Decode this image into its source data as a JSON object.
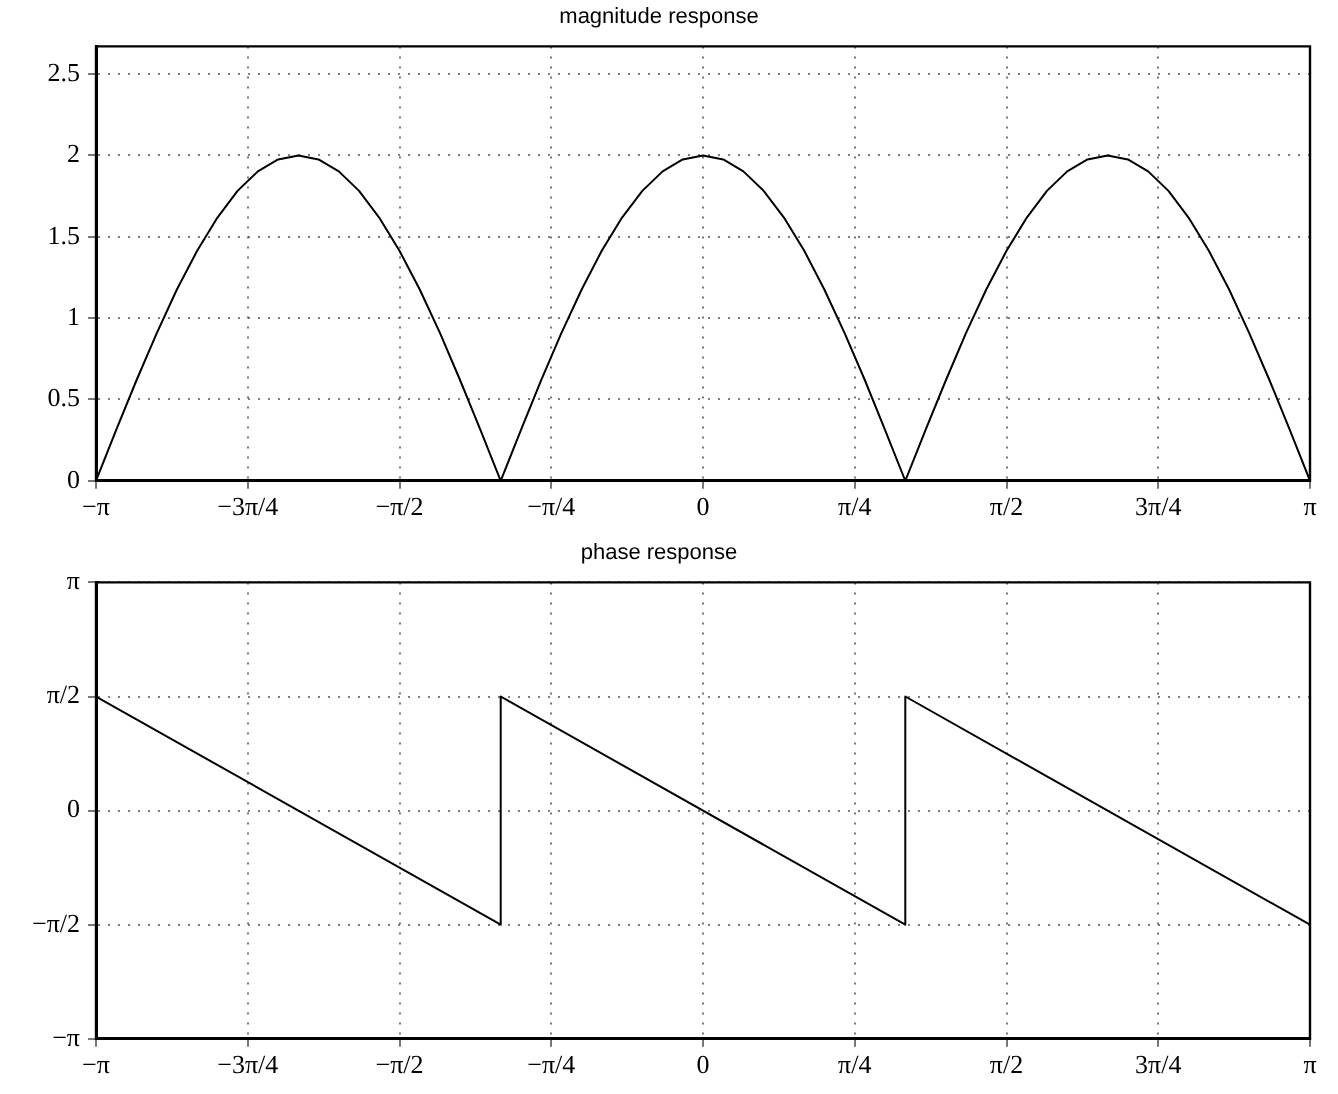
{
  "chart_data": [
    {
      "type": "line",
      "title": "magnitude response",
      "x": [
        -3.1416,
        -3.037,
        -2.932,
        -2.827,
        -2.723,
        -2.618,
        -2.513,
        -2.409,
        -2.304,
        -2.199,
        -2.094,
        -1.99,
        -1.885,
        -1.78,
        -1.676,
        -1.571,
        -1.466,
        -1.361,
        -1.257,
        -1.152,
        -1.047,
        -0.942,
        -0.838,
        -0.733,
        -0.628,
        -0.524,
        -0.419,
        -0.314,
        -0.209,
        -0.105,
        0,
        0.105,
        0.209,
        0.314,
        0.419,
        0.524,
        0.628,
        0.733,
        0.838,
        0.942,
        1.047,
        1.152,
        1.257,
        1.361,
        1.466,
        1.571,
        1.676,
        1.78,
        1.885,
        1.99,
        2.094,
        2.199,
        2.304,
        2.409,
        2.513,
        2.618,
        2.723,
        2.827,
        2.932,
        3.037,
        3.1416
      ],
      "series": [
        {
          "color": "#000000",
          "values": [
            0,
            0.313,
            0.618,
            0.908,
            1.176,
            1.414,
            1.618,
            1.782,
            1.902,
            1.975,
            2,
            1.975,
            1.902,
            1.782,
            1.618,
            1.414,
            1.176,
            0.908,
            0.618,
            0.313,
            0,
            0.313,
            0.618,
            0.908,
            1.176,
            1.414,
            1.618,
            1.782,
            1.902,
            1.975,
            2,
            1.975,
            1.902,
            1.782,
            1.618,
            1.414,
            1.176,
            0.908,
            0.618,
            0.313,
            0,
            0.313,
            0.618,
            0.908,
            1.176,
            1.414,
            1.618,
            1.782,
            1.902,
            1.975,
            2,
            1.975,
            1.902,
            1.782,
            1.618,
            1.414,
            1.176,
            0.908,
            0.618,
            0.313,
            0
          ]
        }
      ],
      "xlim": [
        -3.1416,
        3.1416
      ],
      "xticks": [
        {
          "value": -3.1416,
          "label": "−π"
        },
        {
          "value": -2.3562,
          "label": "−3π/4"
        },
        {
          "value": -1.5708,
          "label": "−π/2"
        },
        {
          "value": -0.7854,
          "label": "−π/4"
        },
        {
          "value": 0,
          "label": "0"
        },
        {
          "value": 0.7854,
          "label": "π/4"
        },
        {
          "value": 1.5708,
          "label": "π/2"
        },
        {
          "value": 2.3562,
          "label": "3π/4"
        },
        {
          "value": 3.1416,
          "label": "π"
        }
      ],
      "ylim": [
        0,
        2.67
      ],
      "yticks": [
        0,
        0.5,
        1,
        1.5,
        2,
        2.5
      ],
      "grid": true,
      "legend": false,
      "marker": "none",
      "line_style": "solid"
    },
    {
      "type": "line",
      "title": "phase response",
      "x": [
        -3.1416,
        -1.047,
        -1.047,
        1.047,
        1.047,
        3.1416
      ],
      "series": [
        {
          "color": "#000000",
          "values": [
            1.5708,
            -1.5708,
            1.5708,
            -1.5708,
            1.5708,
            -1.5708
          ]
        }
      ],
      "xlim": [
        -3.1416,
        3.1416
      ],
      "xticks": [
        {
          "value": -3.1416,
          "label": "−π"
        },
        {
          "value": -2.3562,
          "label": "−3π/4"
        },
        {
          "value": -1.5708,
          "label": "−π/2"
        },
        {
          "value": -0.7854,
          "label": "−π/4"
        },
        {
          "value": 0,
          "label": "0"
        },
        {
          "value": 0.7854,
          "label": "π/4"
        },
        {
          "value": 1.5708,
          "label": "π/2"
        },
        {
          "value": 2.3562,
          "label": "3π/4"
        },
        {
          "value": 3.1416,
          "label": "π"
        }
      ],
      "ylim": [
        -3.1416,
        3.1416
      ],
      "yticks": [
        {
          "value": -3.1416,
          "label": "−π"
        },
        {
          "value": -1.5708,
          "label": "−π/2"
        },
        {
          "value": 0,
          "label": "0"
        },
        {
          "value": 1.5708,
          "label": "π/2"
        },
        {
          "value": 3.1416,
          "label": "π"
        }
      ],
      "grid": true,
      "legend": false,
      "marker": "none",
      "line_style": "solid"
    }
  ]
}
